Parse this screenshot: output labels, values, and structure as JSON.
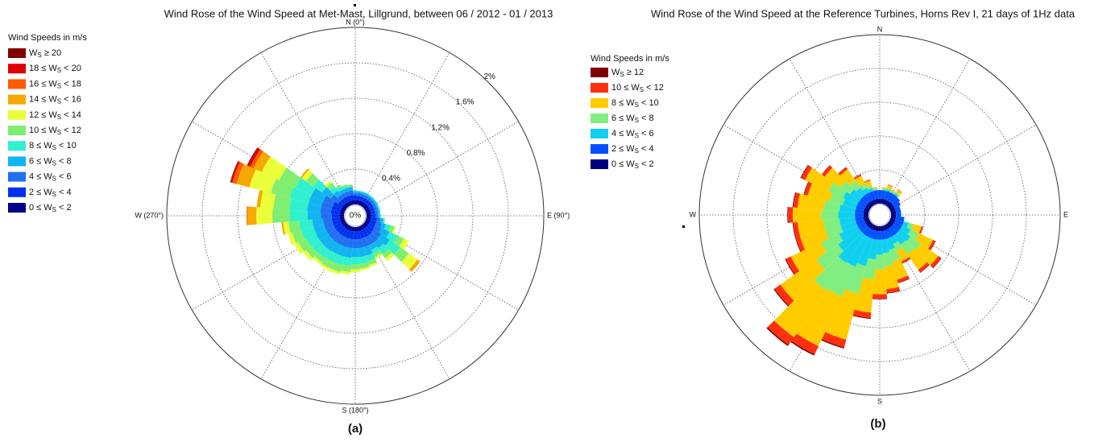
{
  "chart_data": [
    {
      "type": "windrose",
      "title": "Wind Rose of the Wind Speed at Met-Mast, Lillgrund, between 06 / 2012 - 01 / 2013",
      "caption": "(a)",
      "legend_title": "Wind Speeds in m/s",
      "compass": [
        "N (0°)",
        "E (90°)",
        "S (180°)",
        "W (270°)"
      ],
      "x": [
        0,
        10,
        20,
        30,
        40,
        50,
        60,
        70,
        80,
        90,
        100,
        110,
        120,
        130,
        140,
        150,
        160,
        170,
        180,
        190,
        200,
        210,
        220,
        230,
        240,
        250,
        260,
        270,
        280,
        290,
        300,
        310,
        320,
        330,
        340,
        350
      ],
      "rlim": [
        0,
        2
      ],
      "rticks": [
        {
          "value": 0,
          "label": "0%"
        },
        {
          "value": 0.4,
          "label": "0.4%"
        },
        {
          "value": 0.8,
          "label": "0.8%"
        },
        {
          "value": 1.2,
          "label": "1.2%"
        },
        {
          "value": 1.6,
          "label": "1.6%"
        },
        {
          "value": 2,
          "label": "2%"
        }
      ],
      "grid": true,
      "series": [
        {
          "name": "WS ≥ 20",
          "color": "#7f0000",
          "values": [
            0,
            0,
            0,
            0,
            0,
            0,
            0,
            0,
            0,
            0,
            0,
            0,
            0,
            0,
            0,
            0,
            0,
            0,
            0,
            0,
            0,
            0,
            0,
            0,
            0,
            0,
            0,
            0,
            0,
            0.005,
            0.01,
            0,
            0,
            0,
            0,
            0
          ]
        },
        {
          "name": "18 ≤ WS < 20",
          "color": "#e00000",
          "values": [
            0,
            0,
            0,
            0,
            0,
            0,
            0,
            0,
            0,
            0,
            0,
            0,
            0,
            0,
            0,
            0,
            0,
            0,
            0,
            0,
            0,
            0,
            0,
            0,
            0,
            0,
            0,
            0,
            0,
            0.02,
            0.03,
            0,
            0,
            0,
            0,
            0
          ]
        },
        {
          "name": "16 ≤ WS < 18",
          "color": "#ff5a00",
          "values": [
            0,
            0,
            0,
            0,
            0,
            0,
            0,
            0,
            0,
            0,
            0,
            0,
            0,
            0,
            0,
            0,
            0,
            0,
            0,
            0,
            0,
            0,
            0,
            0,
            0,
            0,
            0,
            0.01,
            0,
            0.05,
            0.04,
            0,
            0,
            0,
            0,
            0
          ]
        },
        {
          "name": "14 ≤ WS < 16",
          "color": "#f5a800",
          "values": [
            0,
            0,
            0,
            0,
            0,
            0,
            0,
            0,
            0,
            0,
            0,
            0,
            0,
            0.04,
            0,
            0,
            0,
            0,
            0,
            0,
            0,
            0,
            0,
            0,
            0,
            0,
            0.02,
            0.1,
            0.04,
            0.15,
            0.1,
            0.02,
            0,
            0,
            0,
            0
          ]
        },
        {
          "name": "12 ≤ WS < 14",
          "color": "#eaff3a",
          "values": [
            0,
            0,
            0,
            0,
            0,
            0,
            0,
            0,
            0,
            0,
            0,
            0.02,
            0.06,
            0.12,
            0.04,
            0.02,
            0.02,
            0.02,
            0.03,
            0.03,
            0.03,
            0.03,
            0.03,
            0.04,
            0.05,
            0.05,
            0.06,
            0.18,
            0.15,
            0.25,
            0.22,
            0.06,
            0.03,
            0,
            0,
            0
          ]
        },
        {
          "name": "10 ≤ WS < 12",
          "color": "#80ee70",
          "values": [
            0,
            0,
            0,
            0,
            0,
            0,
            0,
            0,
            0,
            0,
            0,
            0.04,
            0.08,
            0.12,
            0.06,
            0.04,
            0.05,
            0.05,
            0.06,
            0.07,
            0.08,
            0.08,
            0.06,
            0.08,
            0.1,
            0.11,
            0.12,
            0.2,
            0.18,
            0.22,
            0.2,
            0.1,
            0.05,
            0.02,
            0.02,
            0.02
          ]
        },
        {
          "name": "8 ≤ WS < 10",
          "color": "#30f0d0",
          "values": [
            0.01,
            0.01,
            0.01,
            0.01,
            0.01,
            0.01,
            0.01,
            0.01,
            0.01,
            0.01,
            0.02,
            0.06,
            0.1,
            0.14,
            0.08,
            0.05,
            0.06,
            0.08,
            0.08,
            0.09,
            0.1,
            0.1,
            0.1,
            0.11,
            0.12,
            0.14,
            0.15,
            0.2,
            0.2,
            0.22,
            0.2,
            0.12,
            0.06,
            0.04,
            0.02,
            0.01
          ]
        },
        {
          "name": "6 ≤ WS < 8",
          "color": "#10b4f0",
          "values": [
            0.02,
            0.02,
            0.02,
            0.02,
            0.02,
            0.02,
            0.02,
            0.02,
            0.02,
            0.02,
            0.03,
            0.05,
            0.1,
            0.12,
            0.08,
            0.06,
            0.1,
            0.1,
            0.1,
            0.11,
            0.11,
            0.11,
            0.12,
            0.12,
            0.12,
            0.12,
            0.12,
            0.15,
            0.15,
            0.15,
            0.15,
            0.12,
            0.06,
            0.04,
            0.04,
            0.04
          ]
        },
        {
          "name": "4 ≤ WS < 6",
          "color": "#2070f0",
          "values": [
            0.03,
            0.03,
            0.03,
            0.03,
            0.03,
            0.03,
            0.03,
            0.03,
            0.03,
            0.03,
            0.04,
            0.06,
            0.08,
            0.1,
            0.1,
            0.1,
            0.1,
            0.1,
            0.1,
            0.1,
            0.1,
            0.1,
            0.1,
            0.1,
            0.1,
            0.1,
            0.1,
            0.12,
            0.12,
            0.12,
            0.12,
            0.1,
            0.05,
            0.05,
            0.05,
            0.05
          ]
        },
        {
          "name": "2 ≤ WS < 4",
          "color": "#0030f0",
          "values": [
            0.05,
            0.05,
            0.05,
            0.05,
            0.05,
            0.05,
            0.05,
            0.05,
            0.05,
            0.05,
            0.07,
            0.07,
            0.07,
            0.08,
            0.09,
            0.09,
            0.09,
            0.09,
            0.09,
            0.09,
            0.09,
            0.09,
            0.09,
            0.09,
            0.09,
            0.09,
            0.09,
            0.09,
            0.1,
            0.1,
            0.1,
            0.06,
            0.06,
            0.06,
            0.06,
            0.06
          ]
        },
        {
          "name": "0 ≤ WS < 2",
          "color": "#00008c",
          "values": [
            0.05,
            0.05,
            0.05,
            0.05,
            0.05,
            0.05,
            0.05,
            0.05,
            0.05,
            0.05,
            0.05,
            0.05,
            0.05,
            0.05,
            0.05,
            0.05,
            0.05,
            0.05,
            0.05,
            0.05,
            0.05,
            0.05,
            0.05,
            0.05,
            0.05,
            0.05,
            0.05,
            0.05,
            0.05,
            0.05,
            0.05,
            0.05,
            0.05,
            0.05,
            0.05,
            0.05
          ]
        }
      ]
    },
    {
      "type": "windrose",
      "title": "Wind Rose of the Wind Speed at the Reference Turbines, Horns Rev I, 21 days of 1Hz data",
      "caption": "(b)",
      "legend_title": "Wind Speeds in m/s",
      "compass": [
        "N",
        "E",
        "S",
        "W"
      ],
      "x": [
        0,
        10,
        20,
        30,
        40,
        50,
        60,
        70,
        80,
        90,
        100,
        110,
        120,
        130,
        140,
        150,
        160,
        170,
        180,
        190,
        200,
        210,
        220,
        230,
        240,
        250,
        260,
        270,
        280,
        290,
        300,
        310,
        320,
        330,
        340,
        350
      ],
      "rlim": [
        0,
        10
      ],
      "grid": true,
      "series": [
        {
          "name": "WS ≥ 12",
          "color": "#7f0000",
          "values": [
            0,
            0,
            0,
            0,
            0,
            0,
            0,
            0,
            0,
            0,
            0,
            0.01,
            0.02,
            0.03,
            0.03,
            0.02,
            0.03,
            0.03,
            0.04,
            0.05,
            0.07,
            0.08,
            0.08,
            0.06,
            0.05,
            0.04,
            0.04,
            0.04,
            0.04,
            0.03,
            0.04,
            0.03,
            0.02,
            0.01,
            0.01,
            0
          ]
        },
        {
          "name": "10 ≤ WS < 12",
          "color": "#ff3010",
          "values": [
            0,
            0.01,
            0.03,
            0.01,
            0.03,
            0,
            0,
            0,
            0,
            0,
            0,
            0.08,
            0.15,
            0.21,
            0.19,
            0.12,
            0.19,
            0.22,
            0.25,
            0.33,
            0.47,
            0.54,
            0.56,
            0.43,
            0.33,
            0.26,
            0.26,
            0.28,
            0.26,
            0.22,
            0.26,
            0.19,
            0.14,
            0.08,
            0.05,
            0.01
          ]
        },
        {
          "name": "8 ≤ WS < 10",
          "color": "#ffcc00",
          "values": [
            0,
            0.08,
            0.17,
            0.08,
            0.17,
            0,
            0,
            0,
            0,
            0,
            0,
            0.5,
            0.92,
            1.26,
            1.13,
            0.71,
            1.13,
            1.34,
            1.47,
            1.97,
            2.81,
            3.23,
            3.36,
            2.6,
            1.97,
            1.55,
            1.55,
            1.68,
            1.55,
            1.34,
            1.55,
            1.13,
            0.84,
            0.5,
            0.29,
            0.08
          ]
        },
        {
          "name": "6 ≤ WS < 8",
          "color": "#80ee80",
          "values": [
            0,
            0.05,
            0.1,
            0.05,
            0.1,
            0,
            0,
            0,
            0,
            0,
            0,
            0.3,
            0.55,
            0.75,
            0.68,
            0.43,
            0.68,
            0.8,
            0.88,
            1.18,
            1.68,
            1.93,
            2,
            1.55,
            1.18,
            0.93,
            0.93,
            1,
            0.93,
            0.8,
            0.93,
            0.68,
            0.5,
            0.3,
            0.18,
            0.05
          ]
        },
        {
          "name": "4 ≤ WS < 6",
          "color": "#10d0f0",
          "values": [
            0,
            0.05,
            0.1,
            0.05,
            0.1,
            0,
            0,
            0,
            0,
            0,
            0,
            0.3,
            0.55,
            0.75,
            0.68,
            0.43,
            0.68,
            0.8,
            0.88,
            1.18,
            1.68,
            1.93,
            2,
            1.55,
            1.18,
            0.93,
            0.93,
            1,
            0.93,
            0.8,
            0.93,
            0.68,
            0.5,
            0.3,
            0.18,
            0.05
          ]
        },
        {
          "name": "2 ≤ WS < 4",
          "color": "#0050ff",
          "values": [
            0.5,
            0.5,
            0.5,
            0.5,
            0.5,
            0.5,
            0.4,
            0.3,
            0.3,
            0.3,
            0.5,
            0.5,
            0.5,
            0.5,
            0.5,
            0.5,
            0.5,
            0.5,
            0.5,
            0.5,
            0.5,
            0.5,
            0.5,
            0.5,
            0.5,
            0.5,
            0.5,
            0.5,
            0.5,
            0.5,
            0.5,
            0.5,
            0.5,
            0.5,
            0.5,
            0.5
          ]
        },
        {
          "name": "0 ≤ WS < 2",
          "color": "#000080",
          "values": [
            0.3,
            0.3,
            0.3,
            0.3,
            0.3,
            0.3,
            0.3,
            0.3,
            0.3,
            0.3,
            0.3,
            0.3,
            0.3,
            0.3,
            0.3,
            0.3,
            0.3,
            0.3,
            0.3,
            0.3,
            0.3,
            0.3,
            0.3,
            0.3,
            0.3,
            0.3,
            0.3,
            0.3,
            0.3,
            0.3,
            0.3,
            0.3,
            0.3,
            0.3,
            0.3,
            0.3
          ]
        }
      ]
    }
  ]
}
